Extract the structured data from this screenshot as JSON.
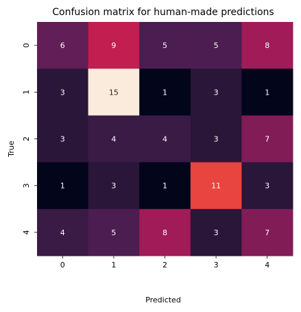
{
  "chart_data": {
    "type": "heatmap",
    "title": "Confusion matrix for human-made predictions",
    "xlabel": "Predicted",
    "ylabel": "True",
    "x_categories": [
      "0",
      "1",
      "2",
      "3",
      "4"
    ],
    "y_categories": [
      "0",
      "1",
      "2",
      "3",
      "4"
    ],
    "values": [
      [
        6,
        9,
        5,
        5,
        8
      ],
      [
        3,
        15,
        1,
        3,
        1
      ],
      [
        3,
        4,
        4,
        3,
        7
      ],
      [
        1,
        3,
        1,
        11,
        3
      ],
      [
        4,
        5,
        8,
        3,
        7
      ]
    ],
    "vmin": 1,
    "vmax": 15,
    "colormap": "rocket",
    "colorbar": false
  }
}
